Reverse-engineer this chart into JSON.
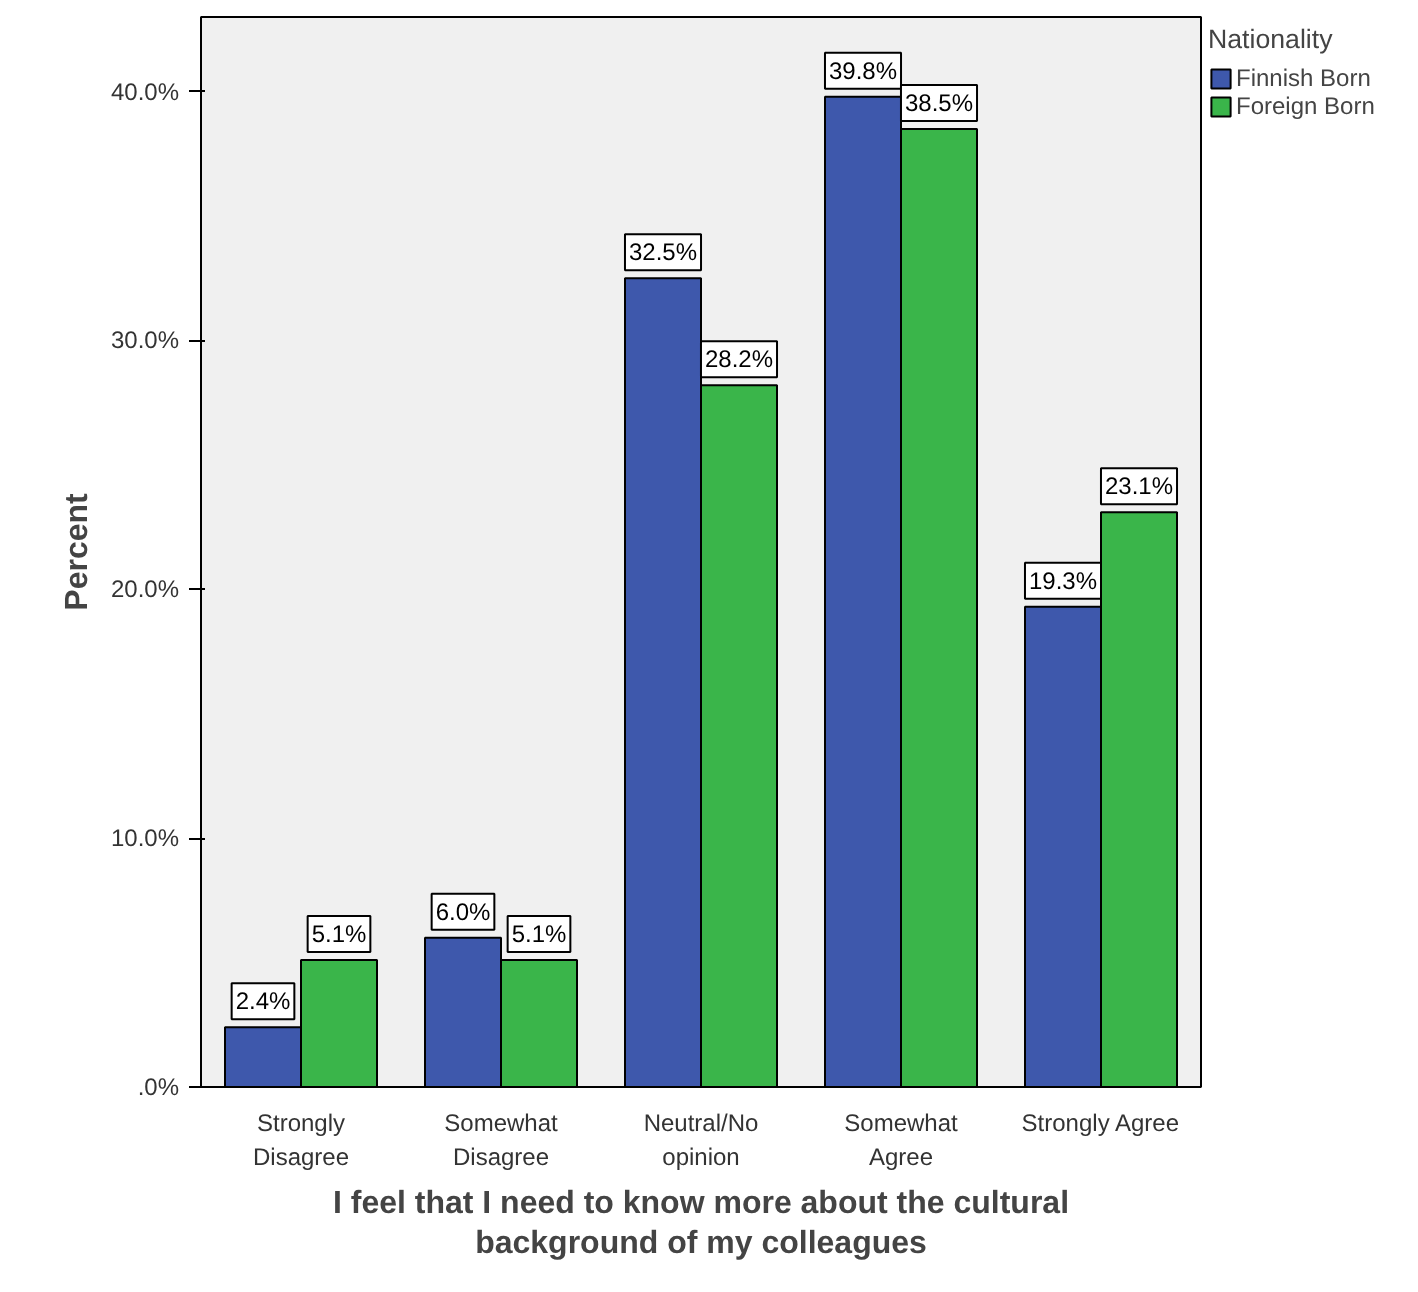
{
  "chart_data": {
    "type": "bar",
    "xlabel": "I feel that I need to know more about the cultural\nbackground of my colleagues",
    "ylabel": "Percent",
    "legend_title": "Nationality",
    "categories": [
      "Strongly\nDisagree",
      "Somewhat\nDisagree",
      "Neutral/No\nopinion",
      "Somewhat\nAgree",
      "Strongly Agree"
    ],
    "series": [
      {
        "name": "Finnish Born",
        "color": "#3e58ac",
        "values": [
          2.4,
          6.0,
          32.5,
          39.8,
          19.3
        ]
      },
      {
        "name": "Foreign Born",
        "color": "#3ab54a",
        "values": [
          5.1,
          5.1,
          28.2,
          38.5,
          23.1
        ]
      }
    ],
    "ylim": [
      0,
      43
    ],
    "yticks": [
      {
        "value": 0,
        "label": ".0%"
      },
      {
        "value": 10,
        "label": "10.0%"
      },
      {
        "value": 20,
        "label": "20.0%"
      },
      {
        "value": 30,
        "label": "30.0%"
      },
      {
        "value": 40,
        "label": "40.0%"
      }
    ],
    "value_labels": [
      [
        "2.4%",
        "6.0%",
        "32.5%",
        "39.8%",
        "19.3%"
      ],
      [
        "5.1%",
        "5.1%",
        "28.2%",
        "38.5%",
        "23.1%"
      ]
    ],
    "grid": false,
    "legend": "right"
  }
}
